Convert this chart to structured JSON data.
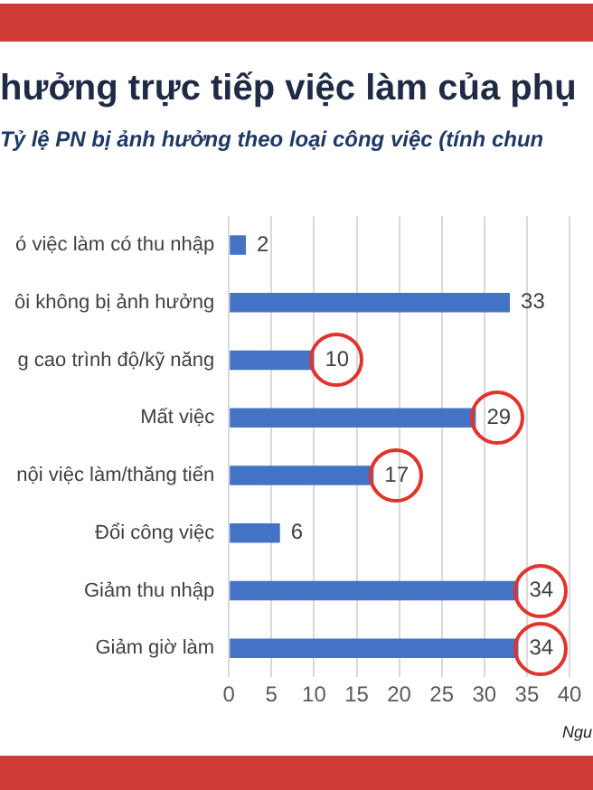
{
  "chart_data": {
    "type": "bar",
    "orientation": "horizontal",
    "title": "hưởng trực tiếp việc làm của phụ",
    "subtitle": "Tỷ lệ PN bị ảnh hưởng theo loại công việc (tính chun",
    "categories": [
      "ó việc làm có thu nhập",
      "ôi không bị ảnh hưởng",
      "g cao trình độ/kỹ năng",
      "Mất việc",
      "nội việc làm/thăng tiến",
      "Đổi công việc",
      "Giảm thu nhập",
      "Giảm giờ làm"
    ],
    "values": [
      2,
      33,
      10,
      29,
      17,
      6,
      34,
      34
    ],
    "color": "#4472c4",
    "xlim": [
      0,
      40
    ],
    "xticks": [
      0,
      5,
      10,
      15,
      20,
      25,
      30,
      35,
      40
    ],
    "grid": "x",
    "data_labels": true,
    "legend": false,
    "annotations": [
      "Ngu"
    ]
  }
}
